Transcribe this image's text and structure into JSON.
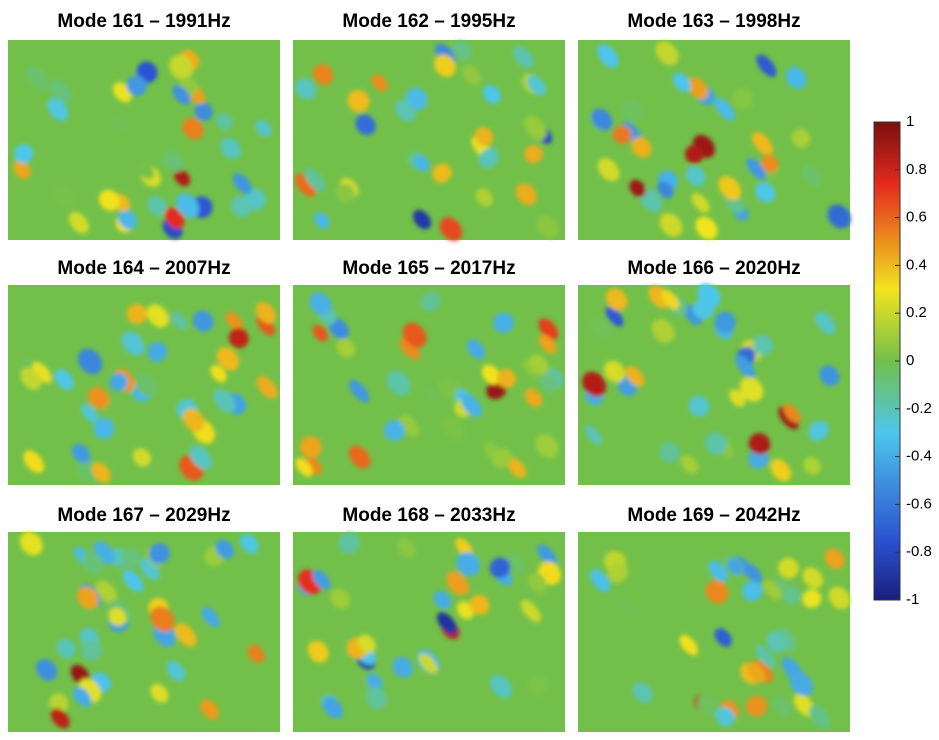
{
  "chart_data": {
    "type": "mode-grid",
    "panels": [
      {
        "title": "Mode 161 – 1991Hz"
      },
      {
        "title": "Mode 162 – 1995Hz"
      },
      {
        "title": "Mode 163 – 1998Hz"
      },
      {
        "title": "Mode 164 – 2007Hz"
      },
      {
        "title": "Mode 165 – 2017Hz"
      },
      {
        "title": "Mode 166 – 2020Hz"
      },
      {
        "title": "Mode 167 – 2029Hz"
      },
      {
        "title": "Mode 168 – 2033Hz"
      },
      {
        "title": "Mode 169 – 2042Hz"
      }
    ],
    "colorbar": {
      "lim": [
        -1,
        1
      ],
      "ticks": [
        1,
        0.8,
        0.6,
        0.4,
        0.2,
        0,
        -0.2,
        -0.4,
        -0.6,
        -0.8,
        -1
      ]
    }
  }
}
